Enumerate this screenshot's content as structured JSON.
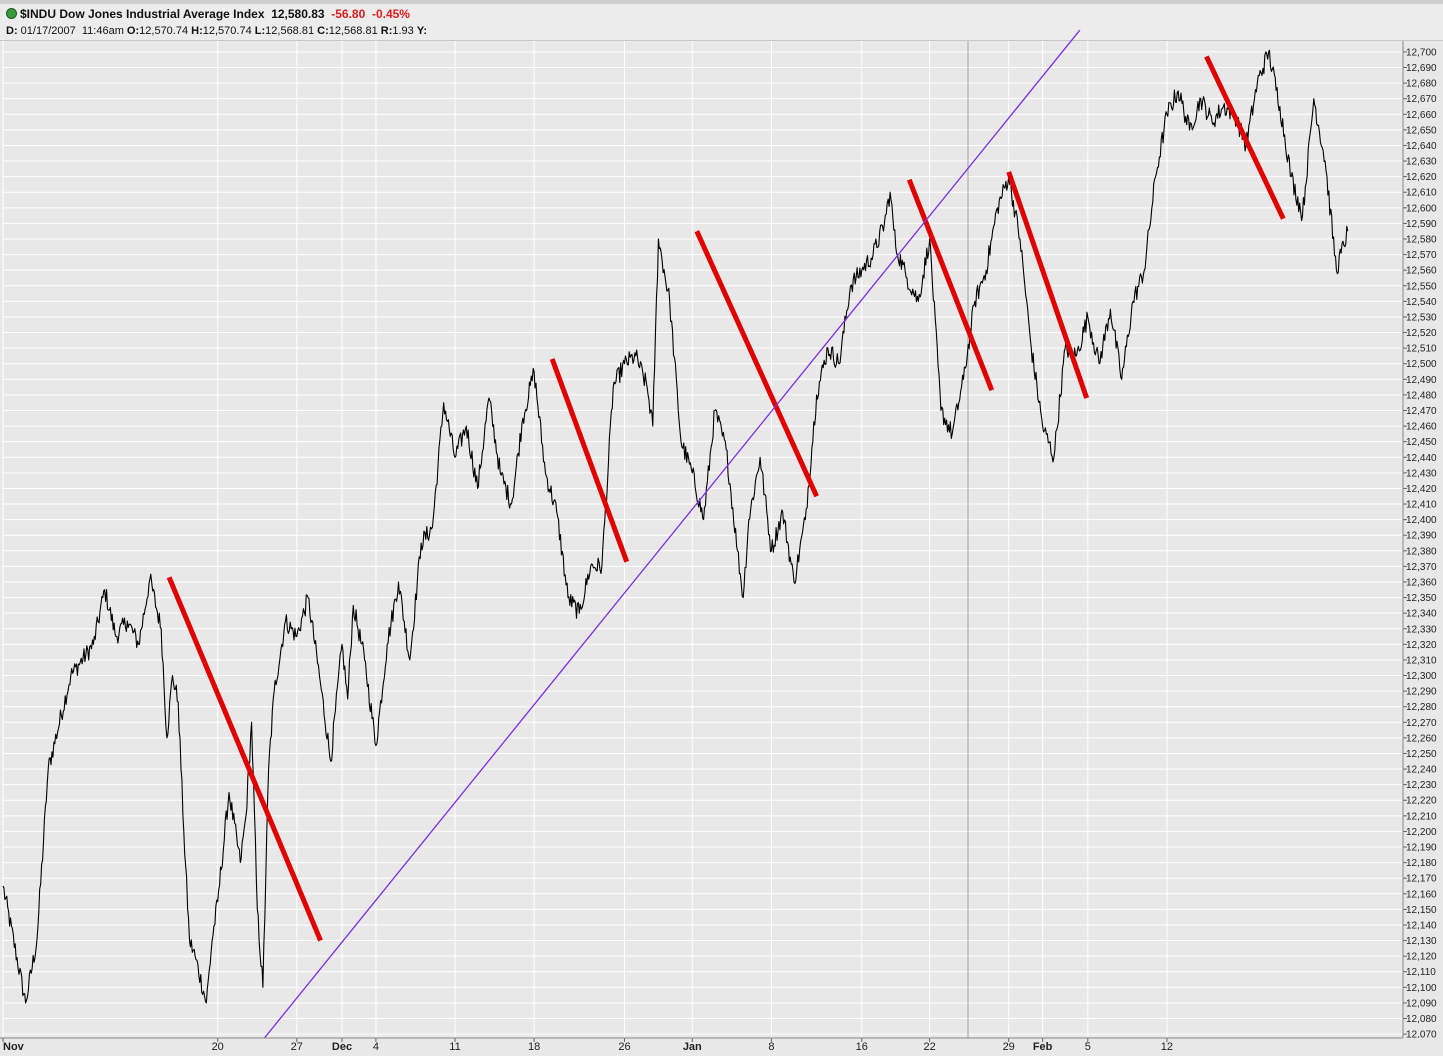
{
  "header": {
    "symbol": "$INDU Dow Jones Industrial Average Index",
    "last": "12,580.83",
    "change": "-56.80",
    "change_pct": "-0.45%",
    "d_label": "D:",
    "date": "01/17/2007",
    "time": "11:46am",
    "o_label": "O:",
    "open": "12,570.74",
    "h_label": "H:",
    "high": "12,570.74",
    "l_label": "L:",
    "low": "12,568.81",
    "c_label": "C:",
    "close": "12,568.81",
    "r_label": "R:",
    "range": "1.93",
    "y_label": "Y:"
  },
  "colors": {
    "background": "#e8e8e8",
    "grid": "#ffffff",
    "price": "#000000",
    "trend_red": "#e00000",
    "trend_purple": "#7b2ee6",
    "negative": "#e21b1b"
  },
  "chart_data": {
    "type": "line",
    "title": "$INDU Dow Jones Industrial Average Index",
    "xlabel": "",
    "ylabel": "",
    "ylim": [
      12067.5,
      12707
    ],
    "y_ticks": [
      "12,070",
      "12,080",
      "12,090",
      "12,100",
      "12,110",
      "12,120",
      "12,130",
      "12,140",
      "12,150",
      "12,160",
      "12,170",
      "12,180",
      "12,190",
      "12,200",
      "12,210",
      "12,220",
      "12,230",
      "12,240",
      "12,250",
      "12,260",
      "12,270",
      "12,280",
      "12,290",
      "12,300",
      "12,310",
      "12,320",
      "12,330",
      "12,340",
      "12,350",
      "12,360",
      "12,370",
      "12,380",
      "12,390",
      "12,400",
      "12,410",
      "12,420",
      "12,430",
      "12,440",
      "12,450",
      "12,460",
      "12,470",
      "12,480",
      "12,490",
      "12,500",
      "12,510",
      "12,520",
      "12,530",
      "12,540",
      "12,550",
      "12,560",
      "12,570",
      "12,580",
      "12,590",
      "12,600",
      "12,610",
      "12,620",
      "12,630",
      "12,640",
      "12,650",
      "12,660",
      "12,670",
      "12,680",
      "12,690",
      "12,700"
    ],
    "x_ticks": [
      {
        "label": "Nov",
        "d": 0,
        "bold": true
      },
      {
        "label": "20",
        "d": 19
      },
      {
        "label": "27",
        "d": 26
      },
      {
        "label": "Dec",
        "d": 30,
        "bold": true
      },
      {
        "label": "4",
        "d": 33
      },
      {
        "label": "11",
        "d": 40
      },
      {
        "label": "18",
        "d": 47
      },
      {
        "label": "26",
        "d": 55
      },
      {
        "label": "Jan",
        "d": 61,
        "bold": true
      },
      {
        "label": "8",
        "d": 68
      },
      {
        "label": "16",
        "d": 76
      },
      {
        "label": "22",
        "d": 82
      },
      {
        "label": "29",
        "d": 89
      },
      {
        "label": "Feb",
        "d": 92,
        "bold": true
      },
      {
        "label": "5",
        "d": 96
      },
      {
        "label": "12",
        "d": 103
      }
    ],
    "series": [
      {
        "type": "line",
        "points": [
          [
            0,
            12165
          ],
          [
            2,
            12090
          ],
          [
            3,
            12130
          ],
          [
            4,
            12240
          ],
          [
            6,
            12300
          ],
          [
            8,
            12320
          ],
          [
            9,
            12355
          ],
          [
            10,
            12325
          ],
          [
            11,
            12335
          ],
          [
            12,
            12320
          ],
          [
            13,
            12362
          ],
          [
            14,
            12330
          ],
          [
            14.5,
            12260
          ],
          [
            15,
            12300
          ],
          [
            15.5,
            12283
          ],
          [
            16,
            12200
          ],
          [
            16.5,
            12130
          ],
          [
            17,
            12120
          ],
          [
            18,
            12090
          ],
          [
            18.5,
            12130
          ],
          [
            19,
            12155
          ],
          [
            20,
            12225
          ],
          [
            21,
            12180
          ],
          [
            21.5,
            12210
          ],
          [
            22,
            12270
          ],
          [
            22.5,
            12150
          ],
          [
            23,
            12100
          ],
          [
            23.5,
            12240
          ],
          [
            24,
            12290
          ],
          [
            25,
            12335
          ],
          [
            26,
            12325
          ],
          [
            27,
            12350
          ],
          [
            28,
            12300
          ],
          [
            29,
            12245
          ],
          [
            30,
            12320
          ],
          [
            30.5,
            12285
          ],
          [
            31,
            12345
          ],
          [
            32,
            12310
          ],
          [
            33,
            12255
          ],
          [
            34,
            12320
          ],
          [
            35,
            12360
          ],
          [
            36,
            12310
          ],
          [
            37,
            12385
          ],
          [
            38,
            12395
          ],
          [
            39,
            12475
          ],
          [
            40,
            12440
          ],
          [
            41,
            12460
          ],
          [
            42,
            12420
          ],
          [
            43,
            12478
          ],
          [
            44,
            12430
          ],
          [
            45,
            12410
          ],
          [
            46,
            12465
          ],
          [
            47,
            12495
          ],
          [
            48,
            12430
          ],
          [
            49,
            12405
          ],
          [
            50,
            12350
          ],
          [
            51,
            12340
          ],
          [
            52,
            12370
          ],
          [
            53,
            12370
          ],
          [
            54,
            12485
          ],
          [
            55,
            12500
          ],
          [
            56,
            12505
          ],
          [
            57,
            12485
          ],
          [
            57.5,
            12460
          ],
          [
            58,
            12580
          ],
          [
            59,
            12540
          ],
          [
            60,
            12450
          ],
          [
            61,
            12430
          ],
          [
            62,
            12400
          ],
          [
            63,
            12470
          ],
          [
            64,
            12445
          ],
          [
            65,
            12380
          ],
          [
            65.5,
            12350
          ],
          [
            66,
            12400
          ],
          [
            67,
            12440
          ],
          [
            68,
            12380
          ],
          [
            69,
            12405
          ],
          [
            70,
            12360
          ],
          [
            71,
            12400
          ],
          [
            72,
            12480
          ],
          [
            73,
            12510
          ],
          [
            74,
            12500
          ],
          [
            75,
            12550
          ],
          [
            76,
            12560
          ],
          [
            77,
            12570
          ],
          [
            78,
            12590
          ],
          [
            78.5,
            12610
          ],
          [
            79,
            12575
          ],
          [
            80,
            12555
          ],
          [
            81,
            12540
          ],
          [
            82,
            12580
          ],
          [
            83,
            12470
          ],
          [
            84,
            12455
          ],
          [
            85,
            12490
          ],
          [
            86,
            12540
          ],
          [
            87,
            12560
          ],
          [
            88,
            12600
          ],
          [
            89,
            12620
          ],
          [
            90,
            12580
          ],
          [
            91,
            12510
          ],
          [
            92,
            12460
          ],
          [
            93,
            12440
          ],
          [
            94,
            12510
          ],
          [
            95,
            12505
          ],
          [
            96,
            12530
          ],
          [
            97,
            12500
          ],
          [
            98,
            12535
          ],
          [
            99,
            12490
          ],
          [
            100,
            12540
          ],
          [
            101,
            12560
          ],
          [
            102,
            12620
          ],
          [
            103,
            12660
          ],
          [
            104,
            12675
          ],
          [
            105,
            12650
          ],
          [
            106,
            12670
          ],
          [
            107,
            12655
          ],
          [
            108,
            12665
          ],
          [
            109,
            12660
          ],
          [
            110,
            12640
          ],
          [
            111,
            12680
          ],
          [
            112,
            12700
          ],
          [
            113,
            12665
          ],
          [
            114,
            12620
          ],
          [
            115,
            12595
          ],
          [
            116,
            12670
          ],
          [
            117,
            12630
          ],
          [
            118,
            12560
          ],
          [
            119,
            12585
          ]
        ]
      },
      {
        "type": "trendline",
        "color": "red",
        "segments": [
          [
            [
              14.7,
              12363
            ],
            [
              28.1,
              12130
            ]
          ],
          [
            [
              48.6,
              12503
            ],
            [
              55.2,
              12373
            ]
          ],
          [
            [
              61.4,
              12585
            ],
            [
              72.0,
              12415
            ]
          ],
          [
            [
              80.2,
              12618
            ],
            [
              87.5,
              12483
            ]
          ],
          [
            [
              89.0,
              12623
            ],
            [
              95.9,
              12478
            ]
          ],
          [
            [
              106.5,
              12697
            ],
            [
              113.3,
              12593
            ]
          ]
        ]
      },
      {
        "type": "trendline",
        "color": "purple",
        "segments": [
          [
            [
              22.3,
              12060
            ],
            [
              95.3,
              12714
            ]
          ]
        ]
      }
    ]
  }
}
